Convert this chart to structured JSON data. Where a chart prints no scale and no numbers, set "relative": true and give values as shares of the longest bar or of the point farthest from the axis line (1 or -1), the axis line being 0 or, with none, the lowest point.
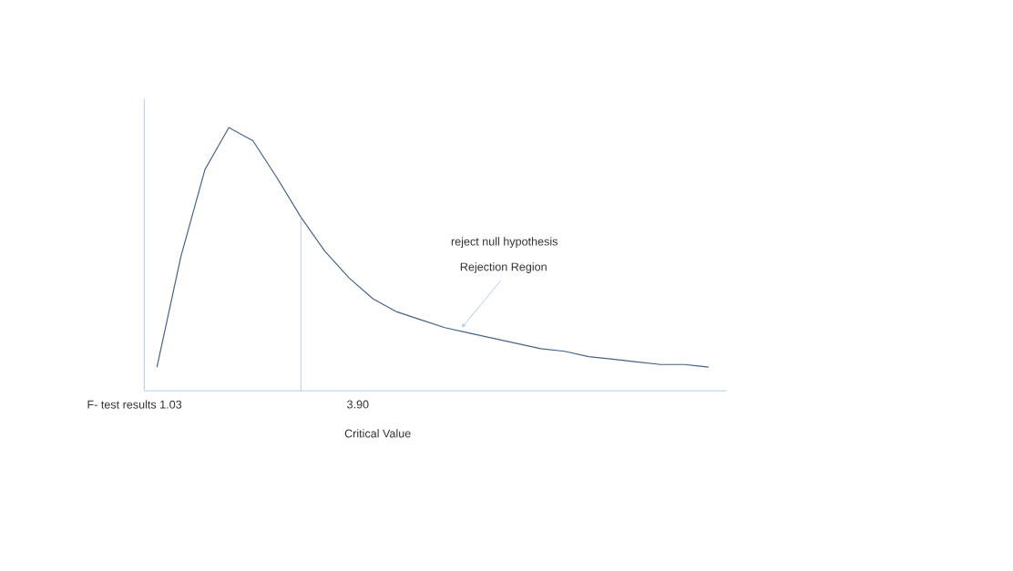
{
  "chart_data": {
    "type": "line",
    "relative": true,
    "color": "#44628c",
    "marker": "none",
    "line_style": "solid",
    "categories": [
      null,
      null,
      null,
      null,
      null,
      null,
      null,
      null,
      null,
      null,
      null,
      null,
      null,
      null,
      null,
      null,
      null,
      null,
      null,
      null,
      null,
      null,
      null,
      null
    ],
    "values": [
      0.09,
      0.51,
      0.84,
      1.0,
      0.95,
      0.81,
      0.66,
      0.53,
      0.43,
      0.35,
      0.3,
      0.27,
      0.24,
      0.22,
      0.2,
      0.18,
      0.16,
      0.15,
      0.13,
      0.12,
      0.11,
      0.1,
      0.1,
      0.09
    ],
    "annotations": [
      "F- test results  1.03",
      "3.90",
      "Critical Value",
      "reject null hypothesis",
      "Rejection Region"
    ]
  }
}
